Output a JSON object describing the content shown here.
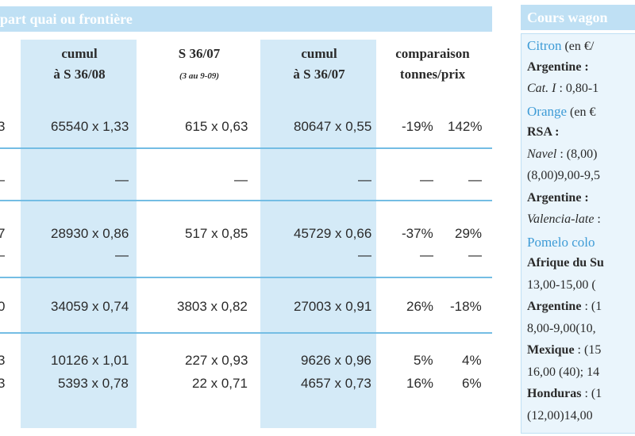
{
  "left": {
    "banner": "part quai ou frontière",
    "headers": [
      [
        "cumul",
        "à S 36/08"
      ],
      [
        "S 36/07",
        "(3 au 9-09)"
      ],
      [
        "cumul",
        "à S 36/07"
      ],
      [
        "comparaison",
        "tonnes/prix"
      ]
    ],
    "rows": [
      [
        [
          "3",
          "65540 x 1,33",
          "615 x 0,63",
          "80647 x 0,55",
          "-19%",
          "142%"
        ]
      ],
      [
        [
          "—",
          "—",
          "—",
          "—",
          "—",
          "—"
        ]
      ],
      [
        [
          "7",
          "28930 x 0,86",
          "517 x 0,85",
          "45729 x 0,66",
          "-37%",
          "29%"
        ],
        [
          "—",
          "—",
          null,
          "—",
          "—",
          "—"
        ]
      ],
      [
        [
          "0",
          "34059 x 0,74",
          "3803 x 0,82",
          "27003 x 0,91",
          "26%",
          "-18%"
        ]
      ],
      [
        [
          "3",
          "10126 x 1,01",
          "227 x 0,93",
          "9626 x 0,96",
          "5%",
          "4%"
        ],
        [
          "3",
          "5393 x 0,78",
          "22 x 0,71",
          "4657 x 0,73",
          "16%",
          "6%"
        ]
      ]
    ]
  },
  "right": {
    "banner": "Cours wagon",
    "lines": [
      [
        {
          "t": "Citron",
          "k": "fruit"
        },
        {
          "t": " (en €/",
          "k": "plain"
        }
      ],
      [
        {
          "t": "Argentine :",
          "k": "bold"
        }
      ],
      [
        {
          "t": "Cat. I",
          "k": "italic"
        },
        {
          "t": " : 0,80-1",
          "k": "plain"
        }
      ],
      [
        {
          "t": "Orange",
          "k": "fruit"
        },
        {
          "t": " (en €",
          "k": "plain"
        }
      ],
      [
        {
          "t": "RSA :",
          "k": "bold"
        }
      ],
      [
        {
          "t": "Navel",
          "k": "italic"
        },
        {
          "t": " : (8,00)",
          "k": "plain"
        }
      ],
      [
        {
          "t": "(8,00)9,00-9,5",
          "k": "plain"
        }
      ],
      [
        {
          "t": "Argentine :",
          "k": "bold"
        }
      ],
      [
        {
          "t": "Valencia-late",
          "k": "italic"
        },
        {
          "t": " :",
          "k": "plain"
        }
      ],
      [
        {
          "t": "Pomelo colo",
          "k": "fruit"
        }
      ],
      [
        {
          "t": "Afrique du Su",
          "k": "bold"
        }
      ],
      [
        {
          "t": "13,00-15,00 (",
          "k": "plain"
        }
      ],
      [
        {
          "t": "Argentine",
          "k": "bold"
        },
        {
          "t": " : (1",
          "k": "plain"
        }
      ],
      [
        {
          "t": "8,00-9,00(10,",
          "k": "plain"
        }
      ],
      [
        {
          "t": "Mexique",
          "k": "bold"
        },
        {
          "t": " : (15",
          "k": "plain"
        }
      ],
      [
        {
          "t": "16,00 (40); 14",
          "k": "plain"
        }
      ],
      [
        {
          "t": "Honduras",
          "k": "bold"
        },
        {
          "t": " : (1",
          "k": "plain"
        }
      ],
      [
        {
          "t": "(12,00)14,00",
          "k": "plain"
        }
      ]
    ]
  }
}
